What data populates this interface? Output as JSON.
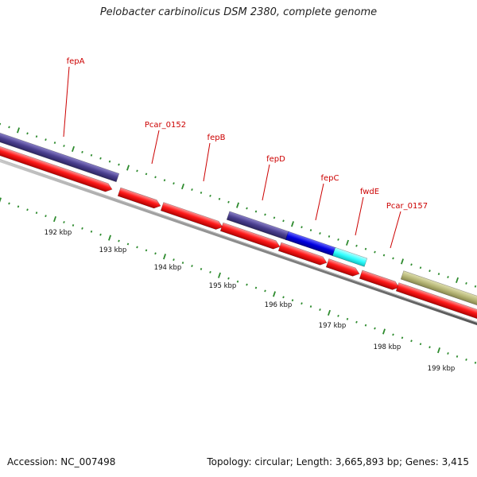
{
  "title": "Pelobacter carbinolicus DSM 2380, complete genome",
  "accession": "Accession: NC_007498",
  "summary": "Topology: circular; Length: 3,665,893 bp; Genes: 3,415",
  "colors": {
    "cds": "#ff0000",
    "backbone": "#808080",
    "tick": "#2e8b2e",
    "label": "#cc0000",
    "cog_slate": "#4a3f8f",
    "cog_blue": "#0000e0",
    "cog_cyan": "#33ffff",
    "cog_khaki": "#b8b878"
  },
  "ticks": [
    {
      "label": "192 kbp"
    },
    {
      "label": "193 kbp"
    },
    {
      "label": "194 kbp"
    },
    {
      "label": "195 kbp"
    },
    {
      "label": "196 kbp"
    },
    {
      "label": "197 kbp"
    },
    {
      "label": "198 kbp"
    },
    {
      "label": "199 kbp"
    }
  ],
  "genes": [
    {
      "label": "fepA"
    },
    {
      "label": "Pcar_0152"
    },
    {
      "label": "fepB"
    },
    {
      "label": "fepD"
    },
    {
      "label": "fepC"
    },
    {
      "label": "fwdE"
    },
    {
      "label": "Pcar_0157"
    }
  ]
}
